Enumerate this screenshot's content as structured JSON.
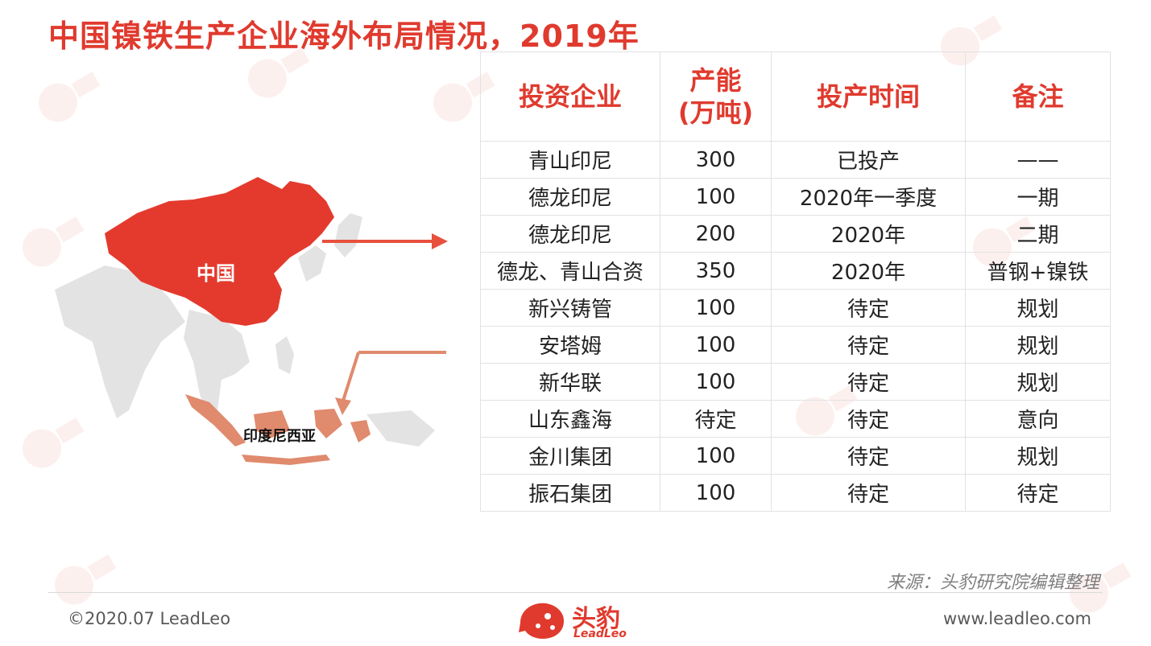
{
  "title": "中国镍铁生产企业海外布局情况，2019年",
  "map": {
    "china_label": "中国",
    "indonesia_label": "印度尼西亚"
  },
  "table": {
    "headers": [
      "投资企业",
      "产能\n(万吨)",
      "投产时间",
      "备注"
    ],
    "rows": [
      [
        "青山印尼",
        "300",
        "已投产",
        "——"
      ],
      [
        "德龙印尼",
        "100",
        "2020年一季度",
        "一期"
      ],
      [
        "德龙印尼",
        "200",
        "2020年",
        "二期"
      ],
      [
        "德龙、青山合资",
        "350",
        "2020年",
        "普钢+镍铁"
      ],
      [
        "新兴铸管",
        "100",
        "待定",
        "规划"
      ],
      [
        "安塔姆",
        "100",
        "待定",
        "规划"
      ],
      [
        "新华联",
        "100",
        "待定",
        "规划"
      ],
      [
        "山东鑫海",
        "待定",
        "待定",
        "意向"
      ],
      [
        "金川集团",
        "100",
        "待定",
        "规划"
      ],
      [
        "振石集团",
        "100",
        "待定",
        "待定"
      ]
    ]
  },
  "source": "来源：头豹研究院编辑整理",
  "footer": {
    "copyright": "©2020.07 LeadLeo",
    "website": "www.leadleo.com",
    "logo_cn": "头豹",
    "logo_en": "LeadLeo"
  },
  "colors": {
    "accent": "#e03a2e",
    "china_fill": "#e43a2d",
    "indonesia_fill": "#e08a6e",
    "land_grey": "#e3e3e3"
  },
  "icons": [
    "leopard-logo-icon",
    "arrow-right-icon",
    "arrow-down-left-icon"
  ]
}
